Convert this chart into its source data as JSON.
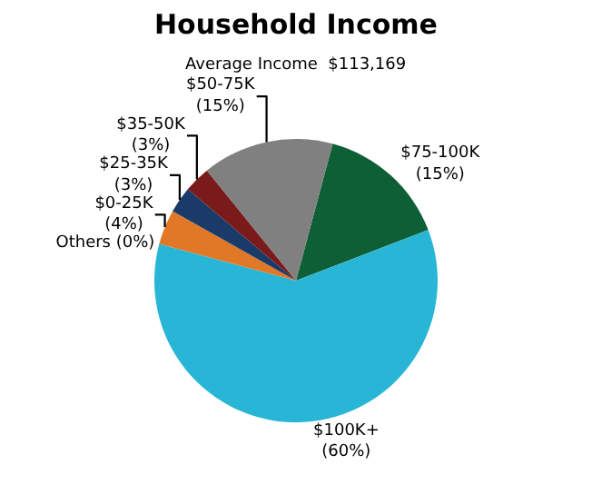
{
  "chart_data": {
    "type": "pie",
    "title": "Household Income",
    "subtitle": "Average Income  $113,169",
    "categories": [
      "$75-100K",
      "$100K+",
      "Others",
      "$0-25K",
      "$25-35K",
      "$35-50K",
      "$50-75K"
    ],
    "values": [
      15,
      60,
      0,
      4,
      3,
      3,
      15
    ],
    "value_labels": [
      "(15%)",
      "(60%)",
      "(0%)",
      "(4%)",
      "(3%)",
      "(3%)",
      "(15%)"
    ],
    "colors": [
      "#0e5e36",
      "#29b6d6",
      "#c0c0c0",
      "#e07828",
      "#1a3a6a",
      "#7a1a1a",
      "#808080"
    ],
    "legend": false
  }
}
